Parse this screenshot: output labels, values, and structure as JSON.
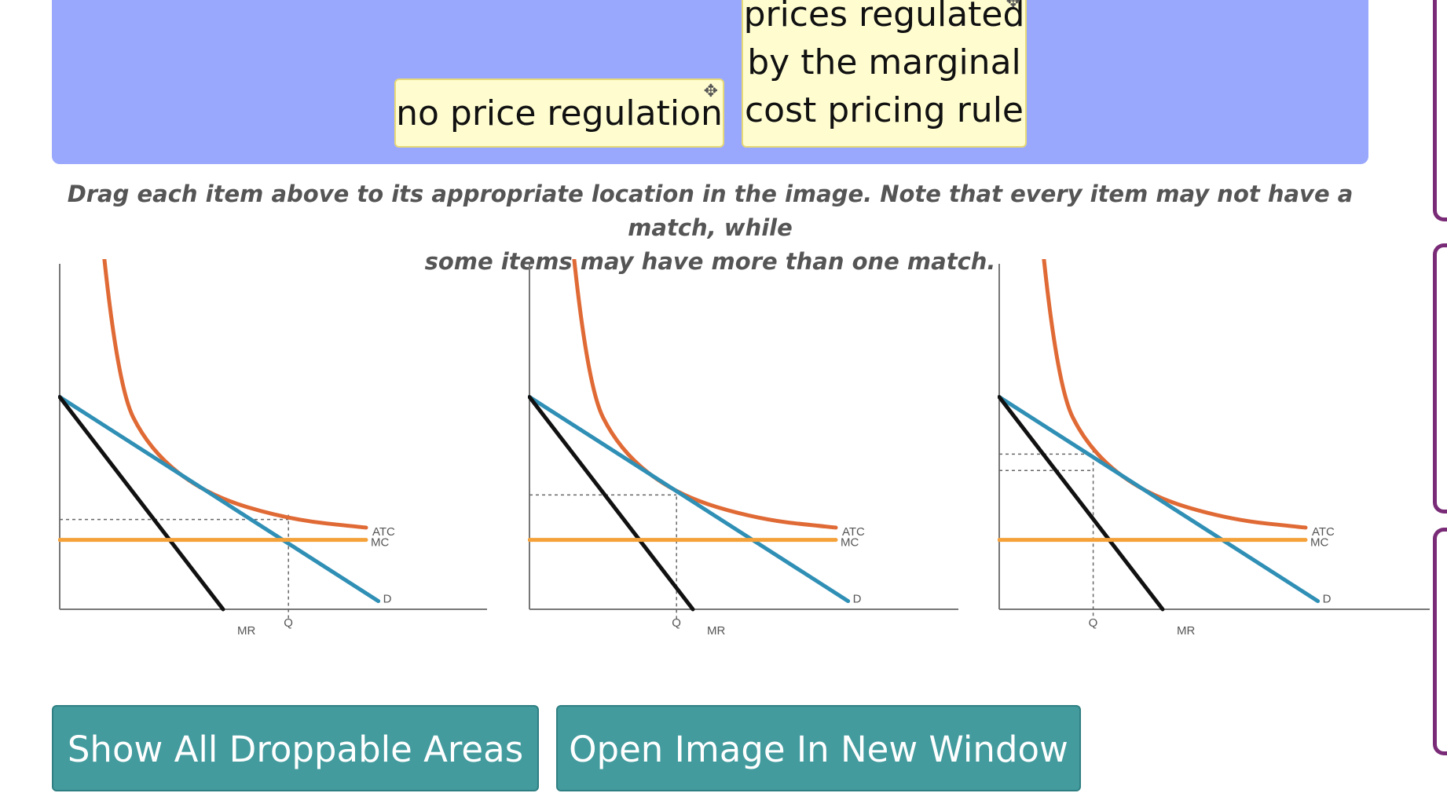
{
  "tray": {
    "items": [
      {
        "label": "no price regulation"
      },
      {
        "label_lines": [
          "prices regulated",
          "by the marginal",
          "cost pricing rule"
        ]
      }
    ],
    "move_glyph": "✥"
  },
  "instructions": {
    "line1": "Drag each item above to its appropriate location in the image. Note that every item may not have a match, while",
    "line2": "some items may have more than one match."
  },
  "colors": {
    "tray_bg": "#99a8fc",
    "chip_bg": "#fffdd0",
    "button_bg": "#439b9e",
    "atc": "#e06a35",
    "demand": "#2f8fb5",
    "mr": "#111111",
    "mc": "#f4a13a",
    "rail": "#7a2b77"
  },
  "chart_data": [
    {
      "type": "line",
      "panel": 1,
      "labels": {
        "atc": "ATC",
        "mc": "MC",
        "demand": "D",
        "mr": "MR",
        "quantity": "Q"
      },
      "series": [
        {
          "name": "ATC",
          "points": [
            [
              0.07,
              1.25
            ],
            [
              0.14,
              0.55
            ],
            [
              0.22,
              0.39
            ],
            [
              0.36,
              0.28
            ],
            [
              0.56,
              0.22
            ],
            [
              0.75,
              0.2
            ]
          ]
        },
        {
          "name": "D",
          "points": [
            [
              0.0,
              0.52
            ],
            [
              0.78,
              0.02
            ]
          ]
        },
        {
          "name": "MR",
          "points": [
            [
              0.0,
              0.52
            ],
            [
              0.4,
              0.0
            ]
          ]
        },
        {
          "name": "MC",
          "points": [
            [
              0.0,
              0.17
            ],
            [
              0.75,
              0.17
            ]
          ]
        }
      ],
      "guides": {
        "q": 0.56,
        "price": 0.22
      }
    },
    {
      "type": "line",
      "panel": 2,
      "labels": {
        "atc": "ATC",
        "mc": "MC",
        "demand": "D",
        "mr": "MR",
        "quantity": "Q"
      },
      "series": [
        {
          "name": "ATC",
          "points": [
            [
              0.07,
              1.25
            ],
            [
              0.14,
              0.55
            ],
            [
              0.22,
              0.39
            ],
            [
              0.36,
              0.28
            ],
            [
              0.56,
              0.22
            ],
            [
              0.75,
              0.2
            ]
          ]
        },
        {
          "name": "D",
          "points": [
            [
              0.0,
              0.52
            ],
            [
              0.78,
              0.02
            ]
          ]
        },
        {
          "name": "MR",
          "points": [
            [
              0.0,
              0.52
            ],
            [
              0.4,
              0.0
            ]
          ]
        },
        {
          "name": "MC",
          "points": [
            [
              0.0,
              0.17
            ],
            [
              0.75,
              0.17
            ]
          ]
        }
      ],
      "guides": {
        "q": 0.36,
        "price": 0.28
      }
    },
    {
      "type": "line",
      "panel": 3,
      "labels": {
        "atc": "ATC",
        "mc": "MC",
        "demand": "D",
        "mr": "MR",
        "quantity": "Q"
      },
      "series": [
        {
          "name": "ATC",
          "points": [
            [
              0.07,
              1.25
            ],
            [
              0.14,
              0.55
            ],
            [
              0.22,
              0.39
            ],
            [
              0.36,
              0.28
            ],
            [
              0.56,
              0.22
            ],
            [
              0.75,
              0.2
            ]
          ]
        },
        {
          "name": "D",
          "points": [
            [
              0.0,
              0.52
            ],
            [
              0.78,
              0.02
            ]
          ]
        },
        {
          "name": "MR",
          "points": [
            [
              0.0,
              0.52
            ],
            [
              0.4,
              0.0
            ]
          ]
        },
        {
          "name": "MC",
          "points": [
            [
              0.0,
              0.17
            ],
            [
              0.75,
              0.17
            ]
          ]
        }
      ],
      "guides": {
        "q": 0.23,
        "price": 0.38,
        "price2": 0.34
      }
    }
  ],
  "buttons": {
    "show_all": "Show All Droppable Areas",
    "open_image": "Open Image In New Window"
  }
}
